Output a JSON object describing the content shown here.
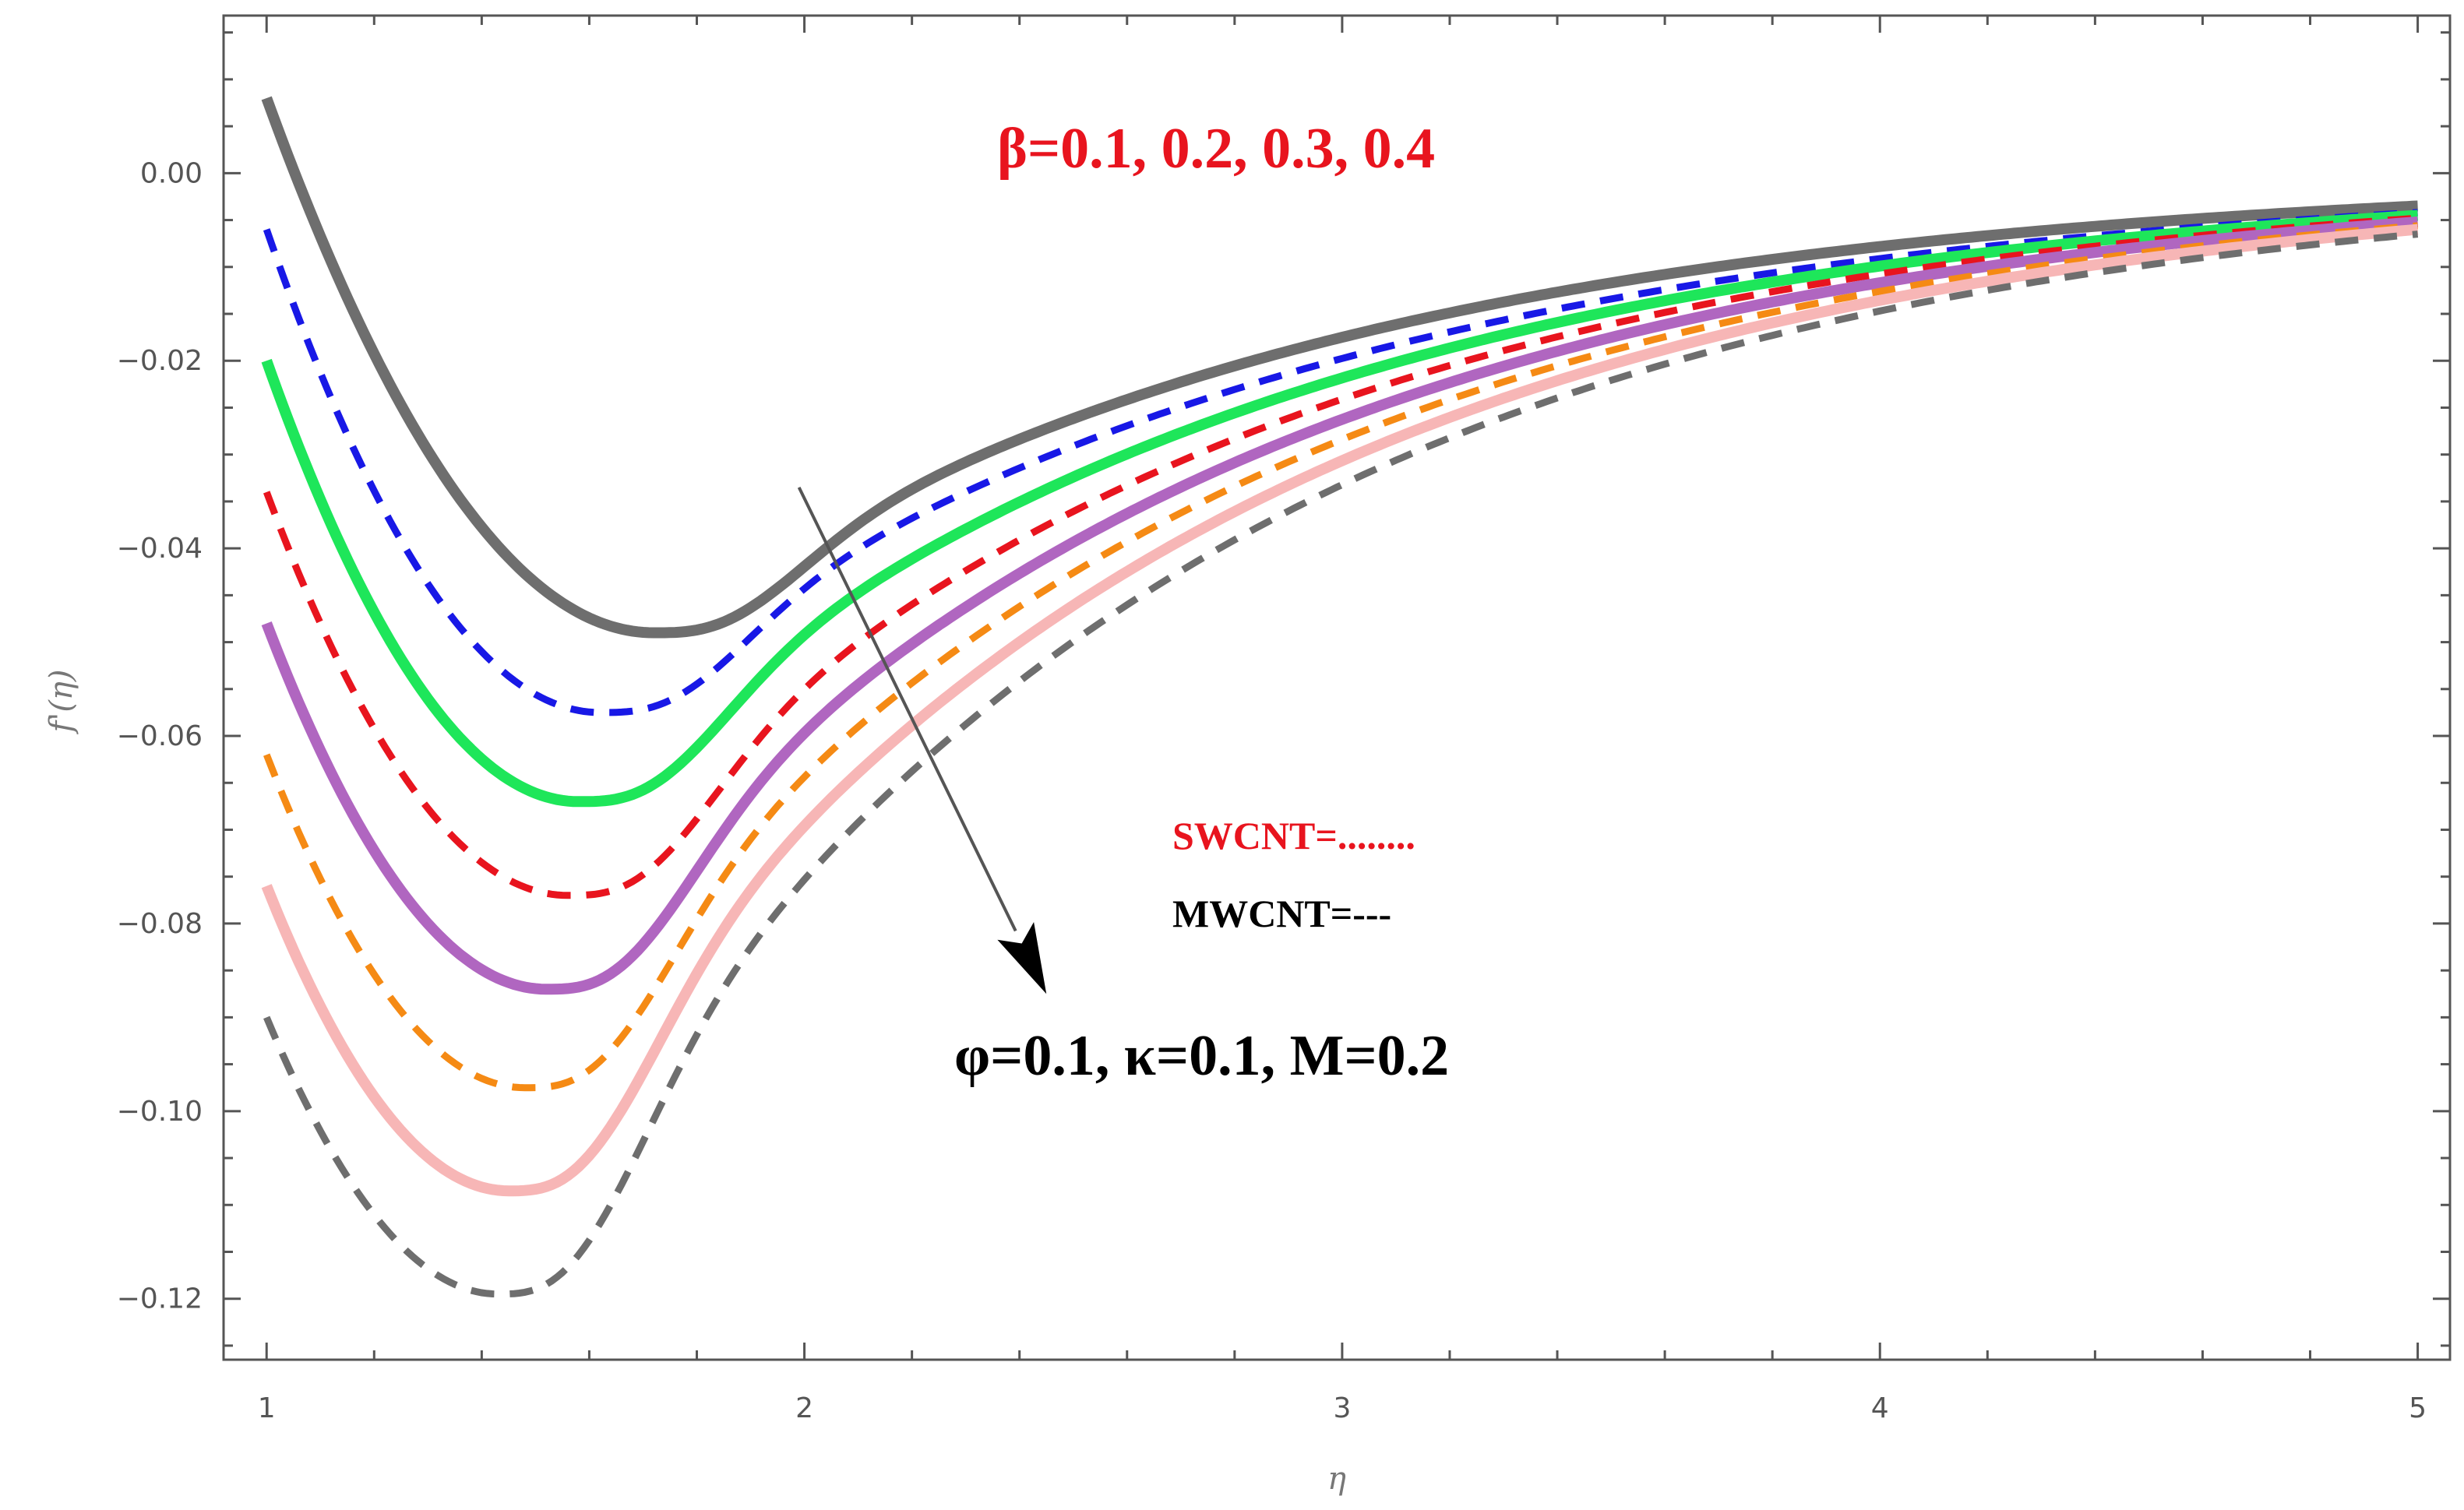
{
  "chart_data": {
    "type": "line",
    "title": "",
    "xlabel": "η",
    "ylabel": "f'(η)",
    "xlim": [
      0.92,
      5.06
    ],
    "ylim": [
      -0.1265,
      0.0168
    ],
    "xticks": [
      1,
      2,
      3,
      4,
      5
    ],
    "xtick_labels": [
      "1",
      "2",
      "3",
      "4",
      "5"
    ],
    "yticks": [
      0.0,
      -0.02,
      -0.04,
      -0.06,
      -0.08,
      -0.1,
      -0.12
    ],
    "ytick_labels": [
      "0.00",
      "−0.02",
      "−0.04",
      "−0.06",
      "−0.08",
      "−0.10",
      "−0.12"
    ],
    "series": [
      {
        "name": "β=0.1 SWCNT",
        "color": "#6e6e6e",
        "style": "solid",
        "start": 0.008,
        "xmin": 1.72,
        "ymin": -0.049,
        "end": -0.0035
      },
      {
        "name": "β=0.1 MWCNT",
        "color": "#1818e6",
        "style": "dashed",
        "start": -0.006,
        "xmin": 1.62,
        "ymin": -0.0575,
        "end": -0.0042
      },
      {
        "name": "β=0.2 SWCNT",
        "color": "#1ee65a",
        "style": "solid",
        "start": -0.02,
        "xmin": 1.58,
        "ymin": -0.067,
        "end": -0.0045
      },
      {
        "name": "β=0.2 MWCNT",
        "color": "#e8141e",
        "style": "dashed",
        "start": -0.034,
        "xmin": 1.56,
        "ymin": -0.077,
        "end": -0.0048
      },
      {
        "name": "β=0.3 SWCNT",
        "color": "#b066c0",
        "style": "solid",
        "start": -0.048,
        "xmin": 1.52,
        "ymin": -0.087,
        "end": -0.0052
      },
      {
        "name": "β=0.3 MWCNT",
        "color": "#f58a14",
        "style": "dashed",
        "start": -0.062,
        "xmin": 1.48,
        "ymin": -0.0975,
        "end": -0.0056
      },
      {
        "name": "β=0.4 SWCNT",
        "color": "#f7b6b6",
        "style": "solid",
        "start": -0.076,
        "xmin": 1.45,
        "ymin": -0.1085,
        "end": -0.006
      },
      {
        "name": "β=0.4 MWCNT",
        "color": "#6e6e6e",
        "style": "dashed",
        "start": -0.09,
        "xmin": 1.43,
        "ymin": -0.1195,
        "end": -0.0065
      }
    ],
    "annotations": {
      "beta": "β=0.1, 0.2, 0.3, 0.4",
      "params": "φ=0.1, κ=0.1, M=0.2",
      "swcnt": "SWCNT=........",
      "mwcnt": "MWCNT=---"
    },
    "arrow": {
      "from": [
        1.99,
        -0.0335
      ],
      "to": [
        2.45,
        -0.0875
      ],
      "color": "#555555"
    }
  }
}
